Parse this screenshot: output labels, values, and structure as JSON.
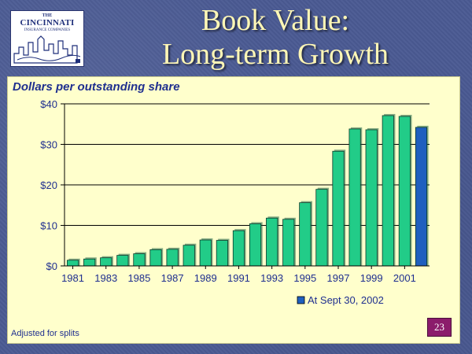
{
  "logo": {
    "the": "THE",
    "name": "CINCINNATI",
    "sub": "INSURANCE COMPANIES"
  },
  "title": {
    "line1": "Book Value:",
    "line2": "Long-term Growth"
  },
  "footnote": "Adjusted for splits",
  "page_number": "23",
  "colors": {
    "bar": "#22cc88",
    "highlight_bar": "#1f5fbf",
    "panel": "#ffffcc",
    "text": "#1f2f8f",
    "title": "#fff7b6"
  },
  "chart_data": {
    "type": "bar",
    "title": "",
    "ylabel": "Dollars per outstanding share",
    "xlabel": "",
    "ylim": [
      0,
      40
    ],
    "y_ticks": [
      0,
      10,
      20,
      30,
      40
    ],
    "y_tick_labels": [
      "$0",
      "$10",
      "$20",
      "$30",
      "$40"
    ],
    "grid": true,
    "categories": [
      "1981",
      "1982",
      "1983",
      "1984",
      "1985",
      "1986",
      "1987",
      "1988",
      "1989",
      "1990",
      "1991",
      "1992",
      "1993",
      "1994",
      "1995",
      "1996",
      "1997",
      "1998",
      "1999",
      "2000",
      "2001",
      "Sept 30, 2002"
    ],
    "x_tick_labels": [
      "1981",
      "1983",
      "1985",
      "1987",
      "1989",
      "1991",
      "1993",
      "1995",
      "1997",
      "1999",
      "2001"
    ],
    "values": [
      1.4,
      1.7,
      2.0,
      2.6,
      3.0,
      4.0,
      4.1,
      5.1,
      6.4,
      6.3,
      8.7,
      10.4,
      11.8,
      11.5,
      15.6,
      18.9,
      28.3,
      33.8,
      33.6,
      37.1,
      36.9,
      34.2
    ],
    "highlight_index": 21,
    "legend": {
      "entries": [
        "At Sept 30, 2002"
      ],
      "placement": "bottom-right"
    }
  }
}
